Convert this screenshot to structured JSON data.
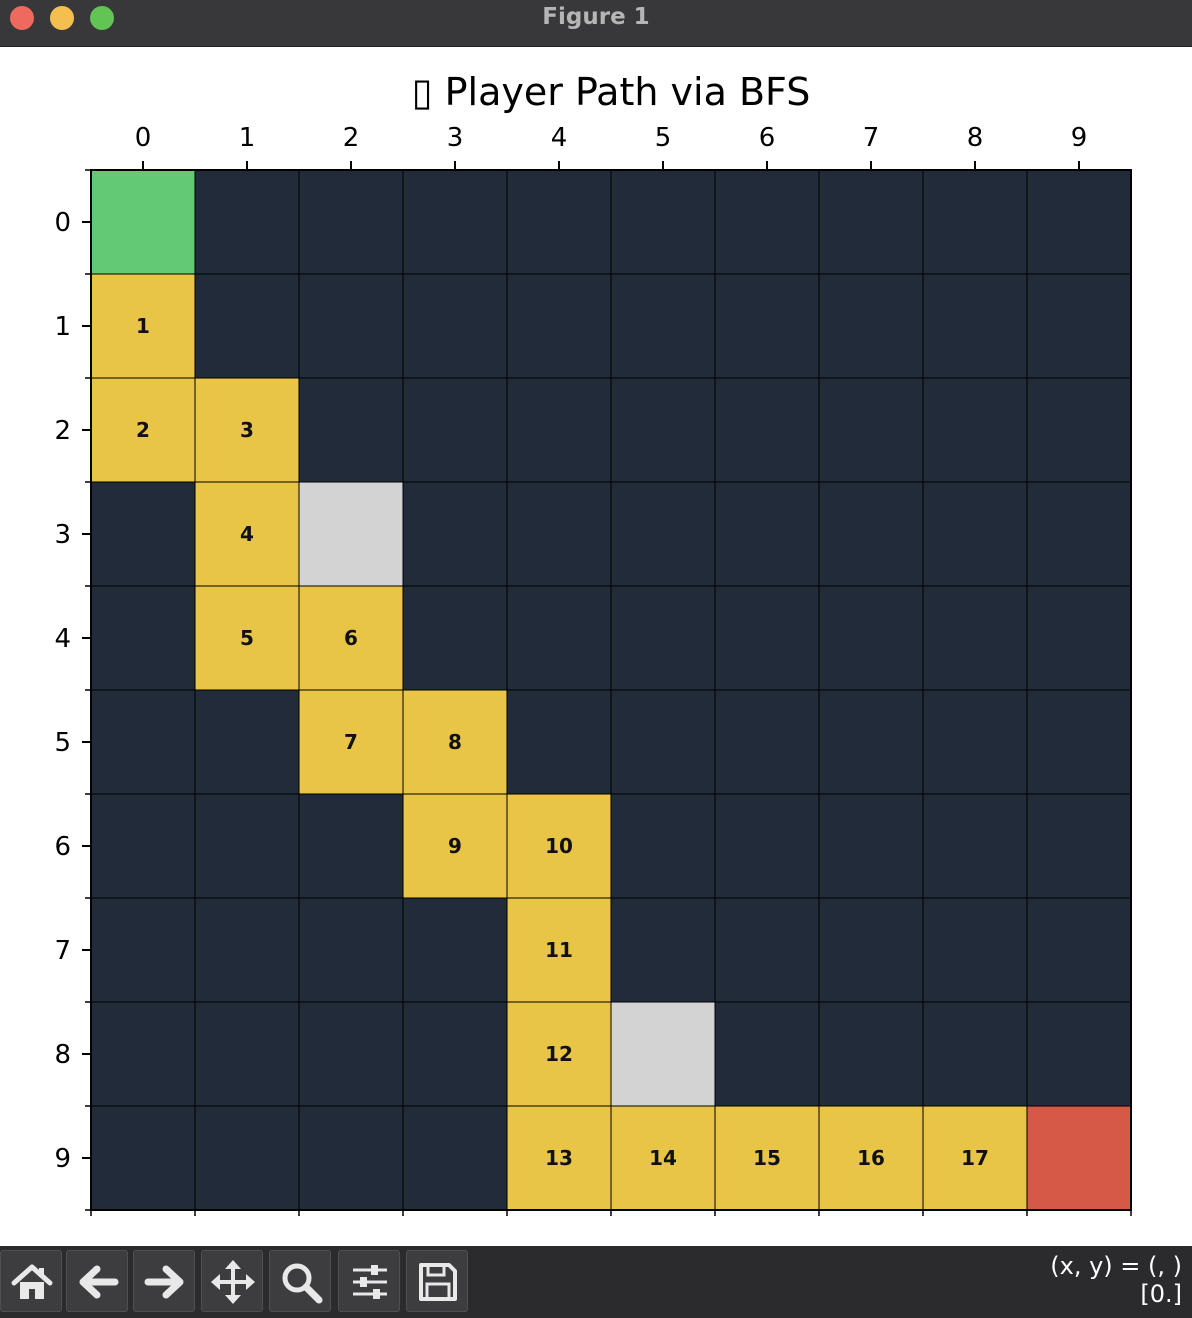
{
  "window": {
    "title": "Figure 1",
    "controls": [
      "close-button",
      "minimize-button",
      "zoom-button"
    ]
  },
  "toolbar": {
    "buttons": [
      {
        "name": "home-button",
        "icon": "home-icon"
      },
      {
        "name": "back-button",
        "icon": "arrow-left-icon"
      },
      {
        "name": "forward-button",
        "icon": "arrow-right-icon"
      },
      {
        "name": "pan-button",
        "icon": "move-icon"
      },
      {
        "name": "zoom-button",
        "icon": "magnifier-icon"
      },
      {
        "name": "configure-subplots-button",
        "icon": "sliders-icon"
      },
      {
        "name": "save-button",
        "icon": "floppy-disk-icon"
      }
    ],
    "coords_line1": "(x, y) = (, )",
    "coords_line2": "[0.]"
  },
  "chart_data": {
    "type": "heatmap",
    "title": "▯ Player Path via BFS",
    "xlabel": "",
    "ylabel": "",
    "x_ticks": [
      "0",
      "1",
      "2",
      "3",
      "4",
      "5",
      "6",
      "7",
      "8",
      "9"
    ],
    "y_ticks": [
      "0",
      "1",
      "2",
      "3",
      "4",
      "5",
      "6",
      "7",
      "8",
      "9"
    ],
    "grid_size": [
      10,
      10
    ],
    "x_axis_position": "top",
    "y_axis_inverted": true,
    "cell_types": {
      "empty": "#212b3a",
      "path": "#e8c547",
      "start": "#63c975",
      "goal": "#d65846",
      "obstacle": "#d3d3d3"
    },
    "start": {
      "row": 0,
      "col": 0
    },
    "goal": {
      "row": 9,
      "col": 9
    },
    "obstacles": [
      {
        "row": 3,
        "col": 2
      },
      {
        "row": 8,
        "col": 5
      }
    ],
    "path": [
      {
        "step": "1",
        "row": 1,
        "col": 0
      },
      {
        "step": "2",
        "row": 2,
        "col": 0
      },
      {
        "step": "3",
        "row": 2,
        "col": 1
      },
      {
        "step": "4",
        "row": 3,
        "col": 1
      },
      {
        "step": "5",
        "row": 4,
        "col": 1
      },
      {
        "step": "6",
        "row": 4,
        "col": 2
      },
      {
        "step": "7",
        "row": 5,
        "col": 2
      },
      {
        "step": "8",
        "row": 5,
        "col": 3
      },
      {
        "step": "9",
        "row": 6,
        "col": 3
      },
      {
        "step": "10",
        "row": 6,
        "col": 4
      },
      {
        "step": "11",
        "row": 7,
        "col": 4
      },
      {
        "step": "12",
        "row": 8,
        "col": 4
      },
      {
        "step": "13",
        "row": 9,
        "col": 4
      },
      {
        "step": "14",
        "row": 9,
        "col": 5
      },
      {
        "step": "15",
        "row": 9,
        "col": 6
      },
      {
        "step": "16",
        "row": 9,
        "col": 7
      },
      {
        "step": "17",
        "row": 9,
        "col": 8
      }
    ],
    "grid": true
  }
}
